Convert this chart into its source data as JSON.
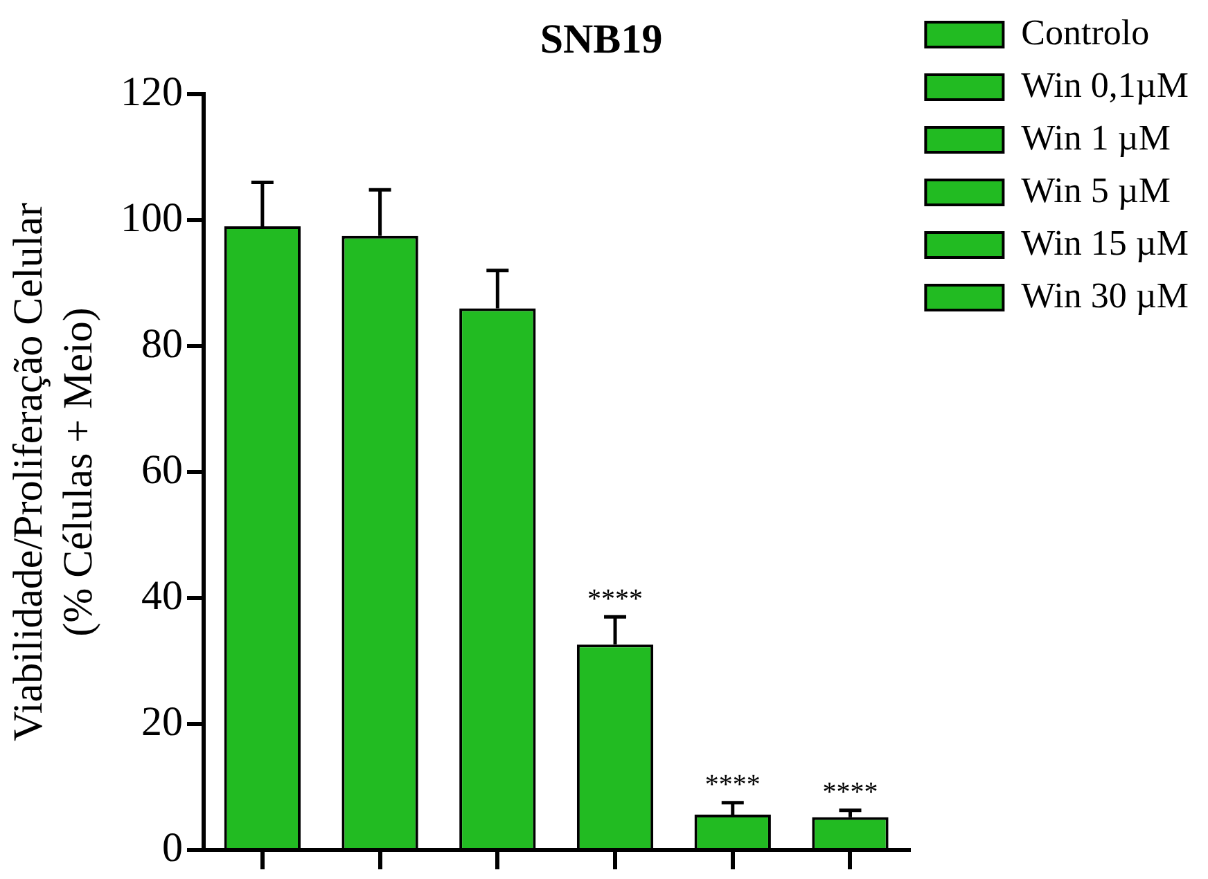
{
  "chart_data": {
    "type": "bar",
    "title": "SNB19",
    "ylabel": [
      "Viabilidade/Proliferação Celular",
      "(% Células + Meio)"
    ],
    "categories": [
      null,
      null,
      null,
      null,
      null,
      null
    ],
    "series": [
      {
        "name": "Controlo",
        "color": "#22bb22",
        "values": [
          99,
          null,
          null,
          null,
          null,
          null
        ],
        "errors": [
          7,
          null,
          null,
          null,
          null,
          null
        ]
      },
      {
        "name": "Win 0,1µM",
        "color": "#22bb22",
        "values": [
          null,
          97.5,
          null,
          null,
          null,
          null
        ],
        "errors": [
          null,
          7.3,
          null,
          null,
          null,
          null
        ]
      },
      {
        "name": "Win 1 µM",
        "color": "#22bb22",
        "values": [
          null,
          null,
          86,
          null,
          null,
          null
        ],
        "errors": [
          null,
          null,
          6,
          null,
          null,
          null
        ]
      },
      {
        "name": "Win 5 µM",
        "color": "#22bb22",
        "values": [
          null,
          null,
          null,
          32.6,
          null,
          null
        ],
        "errors": [
          null,
          null,
          null,
          4.4,
          null,
          null
        ],
        "value_labels": [
          null,
          null,
          null,
          "****",
          null,
          null
        ]
      },
      {
        "name": "Win 15 µM",
        "color": "#22bb22",
        "values": [
          null,
          null,
          null,
          null,
          5.6,
          null
        ],
        "errors": [
          null,
          null,
          null,
          null,
          1.9,
          null
        ],
        "value_labels": [
          null,
          null,
          null,
          null,
          "****",
          null
        ]
      },
      {
        "name": "Win 30 µM",
        "color": "#22bb22",
        "values": [
          null,
          null,
          null,
          null,
          null,
          5.2
        ],
        "errors": [
          null,
          null,
          null,
          null,
          null,
          1.1
        ],
        "value_labels": [
          null,
          null,
          null,
          null,
          null,
          "****"
        ]
      }
    ],
    "ylim": [
      0,
      120
    ],
    "yticks": [
      0,
      20,
      40,
      60,
      80,
      100,
      120
    ],
    "grid": false,
    "legend": "top right",
    "tick_labels": "y"
  }
}
